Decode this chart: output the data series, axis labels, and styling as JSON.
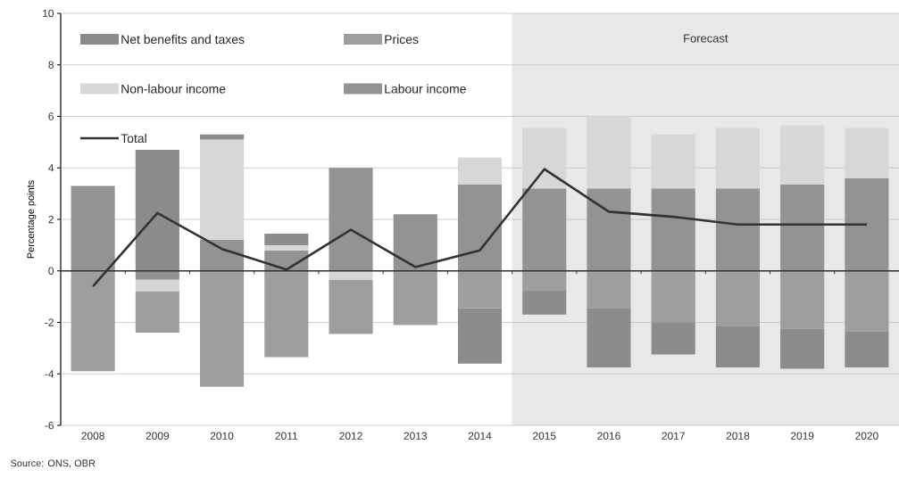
{
  "chart_data": {
    "type": "bar",
    "stacked": true,
    "ylabel": "Percentage points",
    "categories": [
      "2008",
      "2009",
      "2010",
      "2011",
      "2012",
      "2013",
      "2014",
      "2015",
      "2016",
      "2017",
      "2018",
      "2019",
      "2020"
    ],
    "series": [
      {
        "name": "Labour income",
        "color": "#939393",
        "values": [
          3.3,
          -0.35,
          1.2,
          0.8,
          4.0,
          2.2,
          3.35,
          3.2,
          3.2,
          3.2,
          3.2,
          3.35,
          3.6
        ]
      },
      {
        "name": "Non-labour income",
        "color": "#d7d7d7",
        "values": [
          null,
          -0.45,
          3.9,
          0.2,
          -0.35,
          null,
          1.05,
          2.35,
          2.8,
          2.1,
          2.35,
          2.3,
          1.95
        ]
      },
      {
        "name": "Prices",
        "color": "#9e9e9e",
        "values": [
          -3.9,
          -1.6,
          -4.5,
          -3.35,
          -2.1,
          -2.1,
          -1.45,
          -0.75,
          -1.45,
          -2.0,
          -2.15,
          -2.25,
          -2.35
        ]
      },
      {
        "name": "Net benefits and taxes",
        "color": "#8c8c8c",
        "values": [
          null,
          4.7,
          0.2,
          0.45,
          null,
          null,
          -2.15,
          -0.95,
          -2.3,
          -1.25,
          -1.6,
          -1.55,
          -1.4
        ]
      },
      {
        "name": "Total",
        "type": "line",
        "color": "#333333",
        "values": [
          -0.6,
          2.25,
          0.85,
          0.05,
          1.6,
          0.15,
          0.8,
          3.95,
          2.3,
          2.1,
          1.8,
          1.8,
          1.8
        ]
      }
    ],
    "ylim": [
      -6,
      10
    ],
    "yticks": [
      -6,
      -4,
      -2,
      0,
      2,
      4,
      6,
      8,
      10
    ],
    "grid": "y",
    "legend": "top left",
    "bands": [
      {
        "axis": "x",
        "from": "2015",
        "to": "2020",
        "label": "Forecast",
        "color": "#e8e8e8"
      }
    ],
    "annotations": [
      "Source: ONS, OBR"
    ]
  }
}
